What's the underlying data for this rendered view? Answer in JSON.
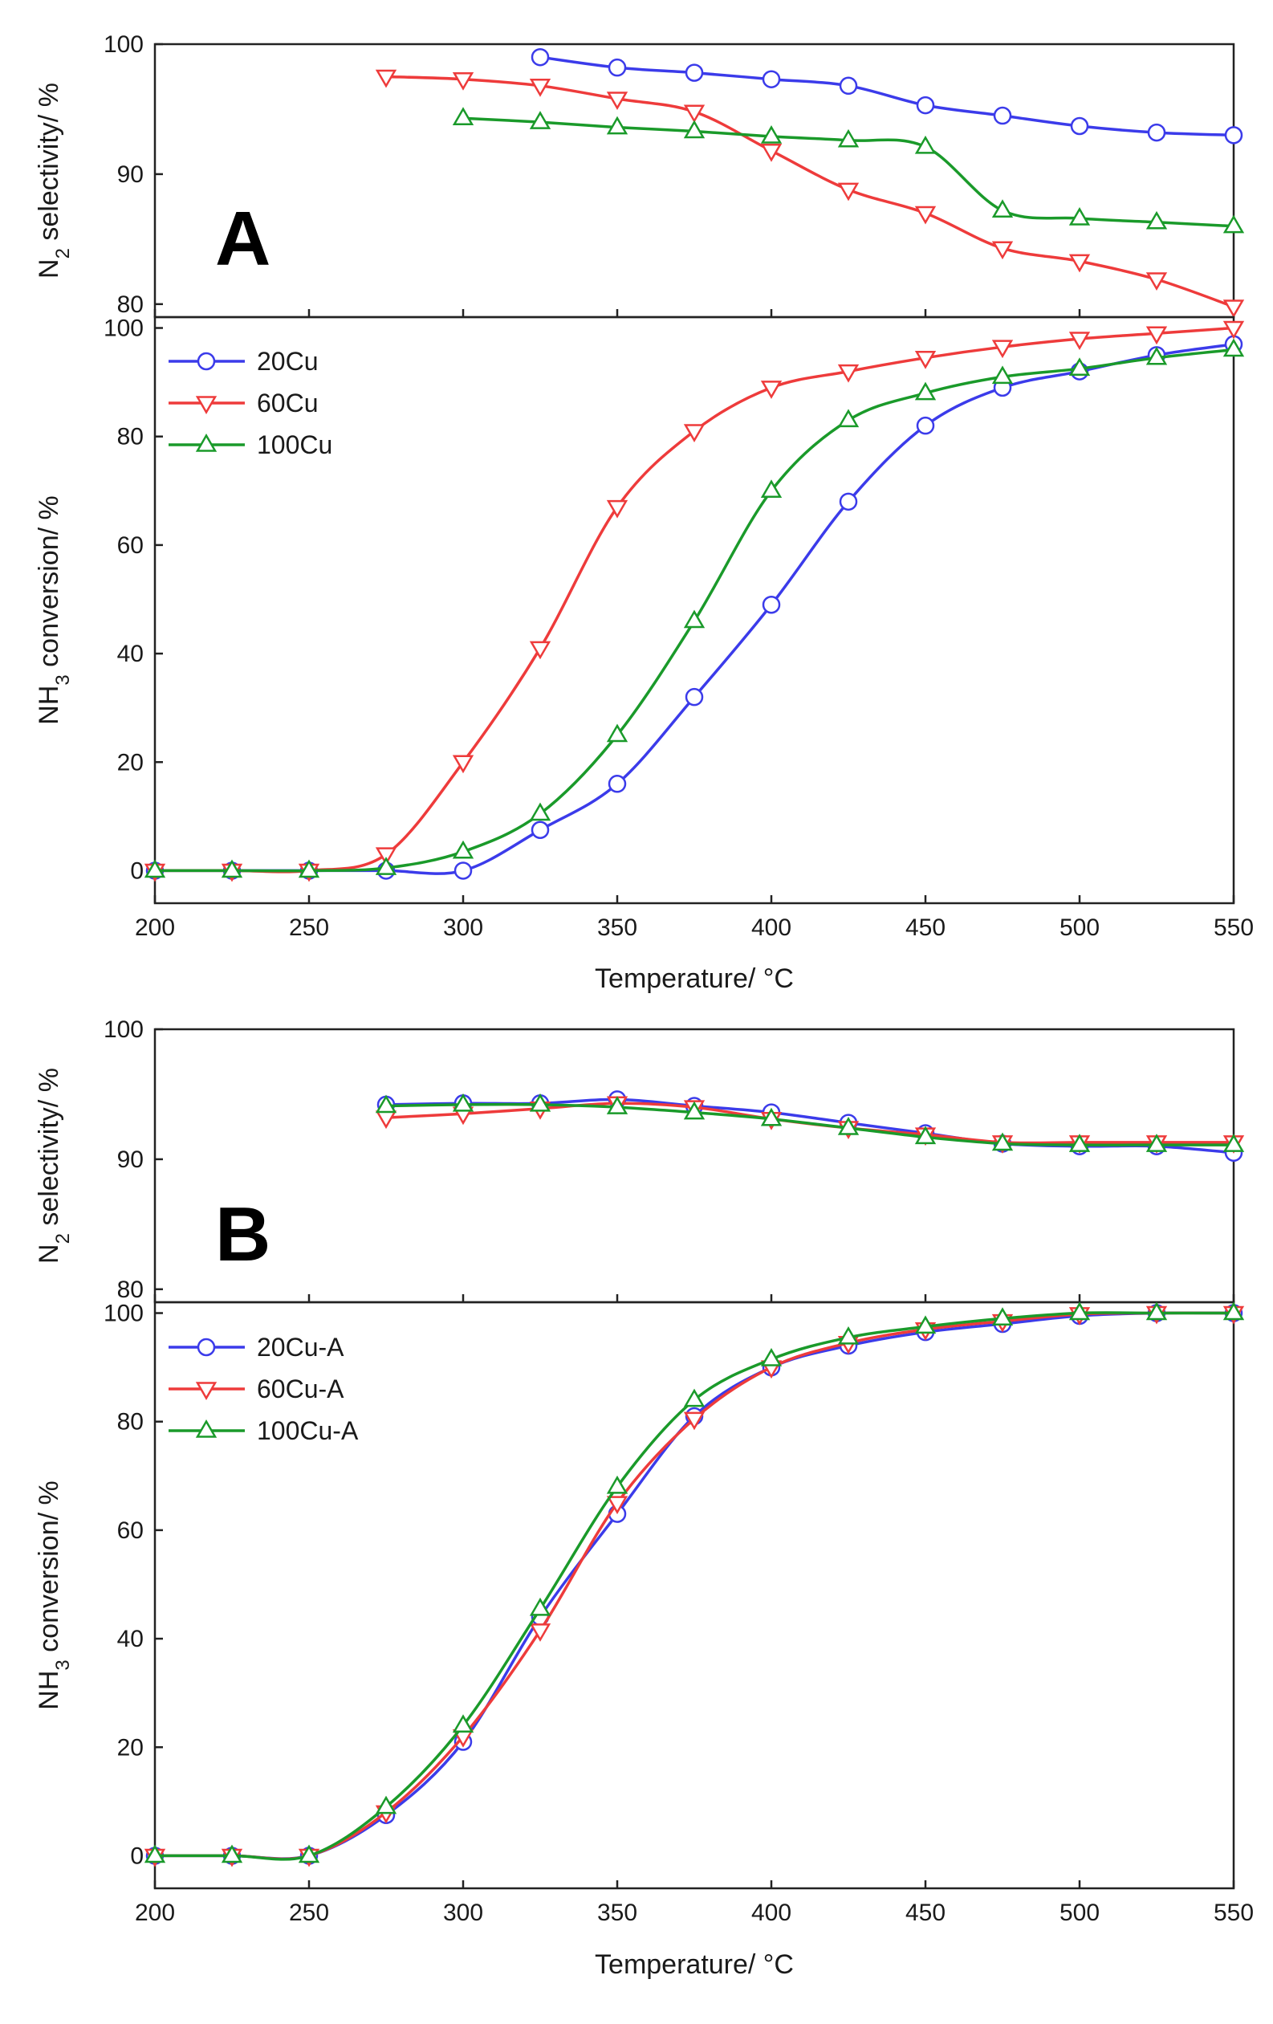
{
  "chart_data": [
    {
      "panel": "A",
      "type": "line",
      "xlabel": "Temperature/ °C",
      "xlim": [
        200,
        550
      ],
      "x_ticks": [
        200,
        250,
        300,
        350,
        400,
        450,
        500,
        550
      ],
      "subplots": [
        {
          "name": "selectivity",
          "ylabel_main": "N",
          "ylabel_sub": "2",
          "ylabel_rest": " selectivity/ %",
          "ylim": [
            79,
            100
          ],
          "y_ticks": [
            80,
            90,
            100
          ],
          "series": [
            {
              "name": "20Cu",
              "marker": "circle",
              "color": "#3b3bea",
              "x": [
                325,
                350,
                375,
                400,
                425,
                450,
                475,
                500,
                525,
                550
              ],
              "values": [
                99.0,
                98.2,
                97.8,
                97.3,
                96.8,
                95.3,
                94.5,
                93.7,
                93.2,
                93.0
              ]
            },
            {
              "name": "60Cu",
              "marker": "triangle-down",
              "color": "#ee3b3b",
              "x": [
                275,
                300,
                325,
                350,
                375,
                400,
                425,
                450,
                475,
                500,
                525,
                550
              ],
              "values": [
                97.5,
                97.3,
                96.8,
                95.8,
                94.8,
                91.8,
                88.8,
                87.0,
                84.3,
                83.3,
                81.9,
                79.8
              ]
            },
            {
              "name": "100Cu",
              "marker": "triangle-up",
              "color": "#1a9a2a",
              "x": [
                300,
                325,
                350,
                375,
                400,
                425,
                450,
                475,
                500,
                525,
                550
              ],
              "values": [
                94.3,
                94.0,
                93.6,
                93.3,
                92.9,
                92.6,
                92.1,
                87.2,
                86.6,
                86.3,
                86.0
              ]
            }
          ]
        },
        {
          "name": "conversion",
          "ylabel_main": "NH",
          "ylabel_sub": "3",
          "ylabel_rest": " conversion/ %",
          "ylim": [
            -6,
            102
          ],
          "y_ticks": [
            0,
            20,
            40,
            60,
            80,
            100
          ],
          "legend": "top-left",
          "series": [
            {
              "name": "20Cu",
              "marker": "circle",
              "color": "#3b3bea",
              "x": [
                200,
                225,
                250,
                275,
                300,
                325,
                350,
                375,
                400,
                425,
                450,
                475,
                500,
                525,
                550
              ],
              "values": [
                0,
                0,
                0,
                0,
                0,
                7.5,
                16,
                32,
                49,
                68,
                82,
                89,
                92,
                95,
                97
              ]
            },
            {
              "name": "60Cu",
              "marker": "triangle-down",
              "color": "#ee3b3b",
              "x": [
                200,
                225,
                250,
                275,
                300,
                325,
                350,
                375,
                400,
                425,
                450,
                475,
                500,
                525,
                550
              ],
              "values": [
                0,
                0,
                0,
                3,
                20,
                41,
                67,
                81,
                89,
                92,
                94.5,
                96.5,
                98,
                99,
                100
              ]
            },
            {
              "name": "100Cu",
              "marker": "triangle-up",
              "color": "#1a9a2a",
              "x": [
                200,
                225,
                250,
                275,
                300,
                325,
                350,
                375,
                400,
                425,
                450,
                475,
                500,
                525,
                550
              ],
              "values": [
                0,
                0,
                0,
                0.5,
                3.5,
                10.5,
                25,
                46,
                70,
                83,
                88,
                91,
                92.5,
                94.5,
                96
              ]
            }
          ]
        }
      ]
    },
    {
      "panel": "B",
      "type": "line",
      "xlabel": "Temperature/ °C",
      "xlim": [
        200,
        550
      ],
      "x_ticks": [
        200,
        250,
        300,
        350,
        400,
        450,
        500,
        550
      ],
      "subplots": [
        {
          "name": "selectivity",
          "ylabel_main": "N",
          "ylabel_sub": "2",
          "ylabel_rest": " selectivity/ %",
          "ylim": [
            79,
            100
          ],
          "y_ticks": [
            80,
            90,
            100
          ],
          "series": [
            {
              "name": "20Cu-A",
              "marker": "circle",
              "color": "#3b3bea",
              "x": [
                275,
                300,
                325,
                350,
                375,
                400,
                425,
                450,
                475,
                500,
                525,
                550
              ],
              "values": [
                94.2,
                94.3,
                94.3,
                94.6,
                94.1,
                93.6,
                92.8,
                92.0,
                91.2,
                91.0,
                91.0,
                90.5
              ]
            },
            {
              "name": "60Cu-A",
              "marker": "triangle-down",
              "color": "#ee3b3b",
              "x": [
                275,
                300,
                325,
                350,
                375,
                400,
                425,
                450,
                475,
                500,
                525,
                550
              ],
              "values": [
                93.2,
                93.5,
                93.9,
                94.3,
                94.0,
                93.1,
                92.4,
                91.9,
                91.3,
                91.3,
                91.3,
                91.3
              ]
            },
            {
              "name": "100Cu-A",
              "marker": "triangle-up",
              "color": "#1a9a2a",
              "x": [
                275,
                300,
                325,
                350,
                375,
                400,
                425,
                450,
                475,
                500,
                525,
                550
              ],
              "values": [
                94.1,
                94.2,
                94.2,
                94.0,
                93.6,
                93.1,
                92.4,
                91.7,
                91.2,
                91.1,
                91.1,
                91.1
              ]
            }
          ]
        },
        {
          "name": "conversion",
          "ylabel_main": "NH",
          "ylabel_sub": "3",
          "ylabel_rest": " conversion/ %",
          "ylim": [
            -6,
            102
          ],
          "y_ticks": [
            0,
            20,
            40,
            60,
            80,
            100
          ],
          "legend": "top-left",
          "series": [
            {
              "name": "20Cu-A",
              "marker": "circle",
              "color": "#3b3bea",
              "x": [
                200,
                225,
                250,
                275,
                300,
                325,
                350,
                375,
                400,
                425,
                450,
                475,
                500,
                525,
                550
              ],
              "values": [
                0,
                0,
                0,
                7.5,
                21,
                44,
                63,
                81,
                90,
                94,
                96.5,
                98,
                99.5,
                100,
                100
              ]
            },
            {
              "name": "60Cu-A",
              "marker": "triangle-down",
              "color": "#ee3b3b",
              "x": [
                200,
                225,
                250,
                275,
                300,
                325,
                350,
                375,
                400,
                425,
                450,
                475,
                500,
                525,
                550
              ],
              "values": [
                0,
                0,
                0,
                8,
                22,
                41.5,
                65,
                80.5,
                90,
                94.5,
                97,
                98.5,
                99.8,
                100,
                100
              ]
            },
            {
              "name": "100Cu-A",
              "marker": "triangle-up",
              "color": "#1a9a2a",
              "x": [
                200,
                225,
                250,
                275,
                300,
                325,
                350,
                375,
                400,
                425,
                450,
                475,
                500,
                525,
                550
              ],
              "values": [
                0,
                0,
                0,
                9,
                24,
                45.5,
                68,
                84,
                91.5,
                95.5,
                97.5,
                99,
                100,
                100,
                100
              ]
            }
          ]
        }
      ]
    }
  ]
}
